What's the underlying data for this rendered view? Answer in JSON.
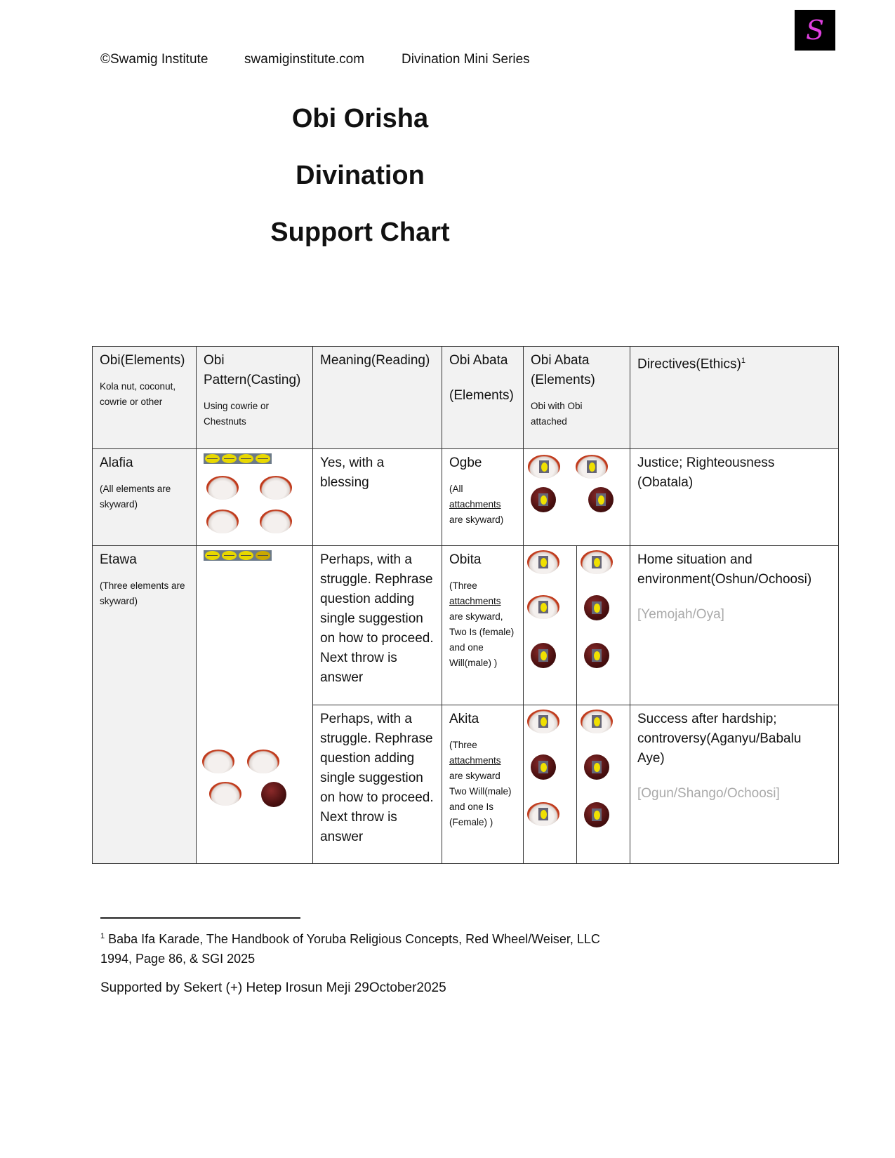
{
  "header": {
    "copyright": "©Swamig Institute",
    "website": "swamiginstitute.com",
    "series": "Divination Mini Series",
    "logo_text": "S"
  },
  "title": {
    "line1": "Obi Orisha",
    "line2": "Divination",
    "line3": "Support Chart"
  },
  "table": {
    "columns": [
      {
        "title": "Obi(Elements)",
        "note": "Kola nut, coconut, cowrie or other"
      },
      {
        "title1": "Obi",
        "title2": "Pattern(Casting)",
        "note": "Using cowrie or Chestnuts"
      },
      {
        "title": "Meaning(Reading)"
      },
      {
        "title1": "Obi Abata",
        "title2": "(Elements)"
      },
      {
        "title1": "Obi Abata",
        "title2": "(Elements)",
        "note": "Obi with Obi attached"
      },
      {
        "title": "Directives(Ethics)",
        "footnote_ref": "1"
      }
    ],
    "rows": [
      {
        "name": "Alafia",
        "note": "(All elements are skyward)",
        "casting_cowries": [
          "closed",
          "closed",
          "closed",
          "closed"
        ],
        "casting_items": [
          "coconut",
          "coconut",
          "coconut",
          "coconut"
        ],
        "meaning": "Yes, with a blessing",
        "abata": "Ogbe",
        "abata_note_1": "(All",
        "abata_note_u": "attachments",
        "abata_note_2": "are skyward)",
        "abata_elements": [
          "coconut-cowrie",
          "coconut-cowrie",
          "kola-cowrie",
          "kola-cowrie"
        ],
        "directive": "Justice; Righteousness (Obatala)"
      },
      {
        "name": "Etawa",
        "note": "(Three elements are skyward)",
        "casting_cowries": [
          "closed",
          "closed",
          "closed",
          "open"
        ],
        "casting_items": [
          "coconut",
          "coconut",
          "coconut",
          "kola"
        ],
        "meaning": "Perhaps, with a struggle. Rephrase question adding single suggestion on how to proceed. Next throw is answer",
        "abata": "Obita",
        "abata_note_1": "(Three",
        "abata_note_u": "attachments",
        "abata_note_2": "are skyward, Two Is (female) and one Will(male) )",
        "abata_elements_a": [
          "coconut-cowrie",
          "coconut-cowrie",
          "kola-cowrie"
        ],
        "abata_elements_b": [
          "coconut-cowrie",
          "kola-cowrie",
          "kola-cowrie"
        ],
        "directive": "Home situation and environment(Oshun/Ochoosi)",
        "directive_secondary": "[Yemojah/Oya]"
      },
      {
        "meaning": "Perhaps, with a struggle. Rephrase question adding single suggestion on how to proceed. Next throw is answer",
        "abata": "Akita",
        "abata_note_1": "(Three",
        "abata_note_u": "attachments",
        "abata_note_2": "are skyward Two Will(male) and one Is (Female) )",
        "abata_elements_a": [
          "coconut-cowrie",
          "kola-cowrie",
          "coconut-cowrie"
        ],
        "abata_elements_b": [
          "coconut-cowrie",
          "kola-cowrie",
          "kola-cowrie"
        ],
        "directive": "Success after hardship; controversy(Aganyu/Babalu Aye)",
        "directive_secondary": "[Ogun/Shango/Ochoosi]"
      }
    ]
  },
  "footnote": {
    "ref": "1",
    "text": "Baba Ifa Karade, The Handbook of Yoruba Religious Concepts, Red Wheel/Weiser, LLC 1994, Page 86, & SGI 2025"
  },
  "support": "Supported by Sekert (+) Hetep Irosun Meji   29October2025",
  "colors": {
    "logo_bg": "#000000",
    "logo_glyph": "#e040e0",
    "header_fill": "#f2f2f2",
    "muted_text": "#aaaaaa"
  }
}
